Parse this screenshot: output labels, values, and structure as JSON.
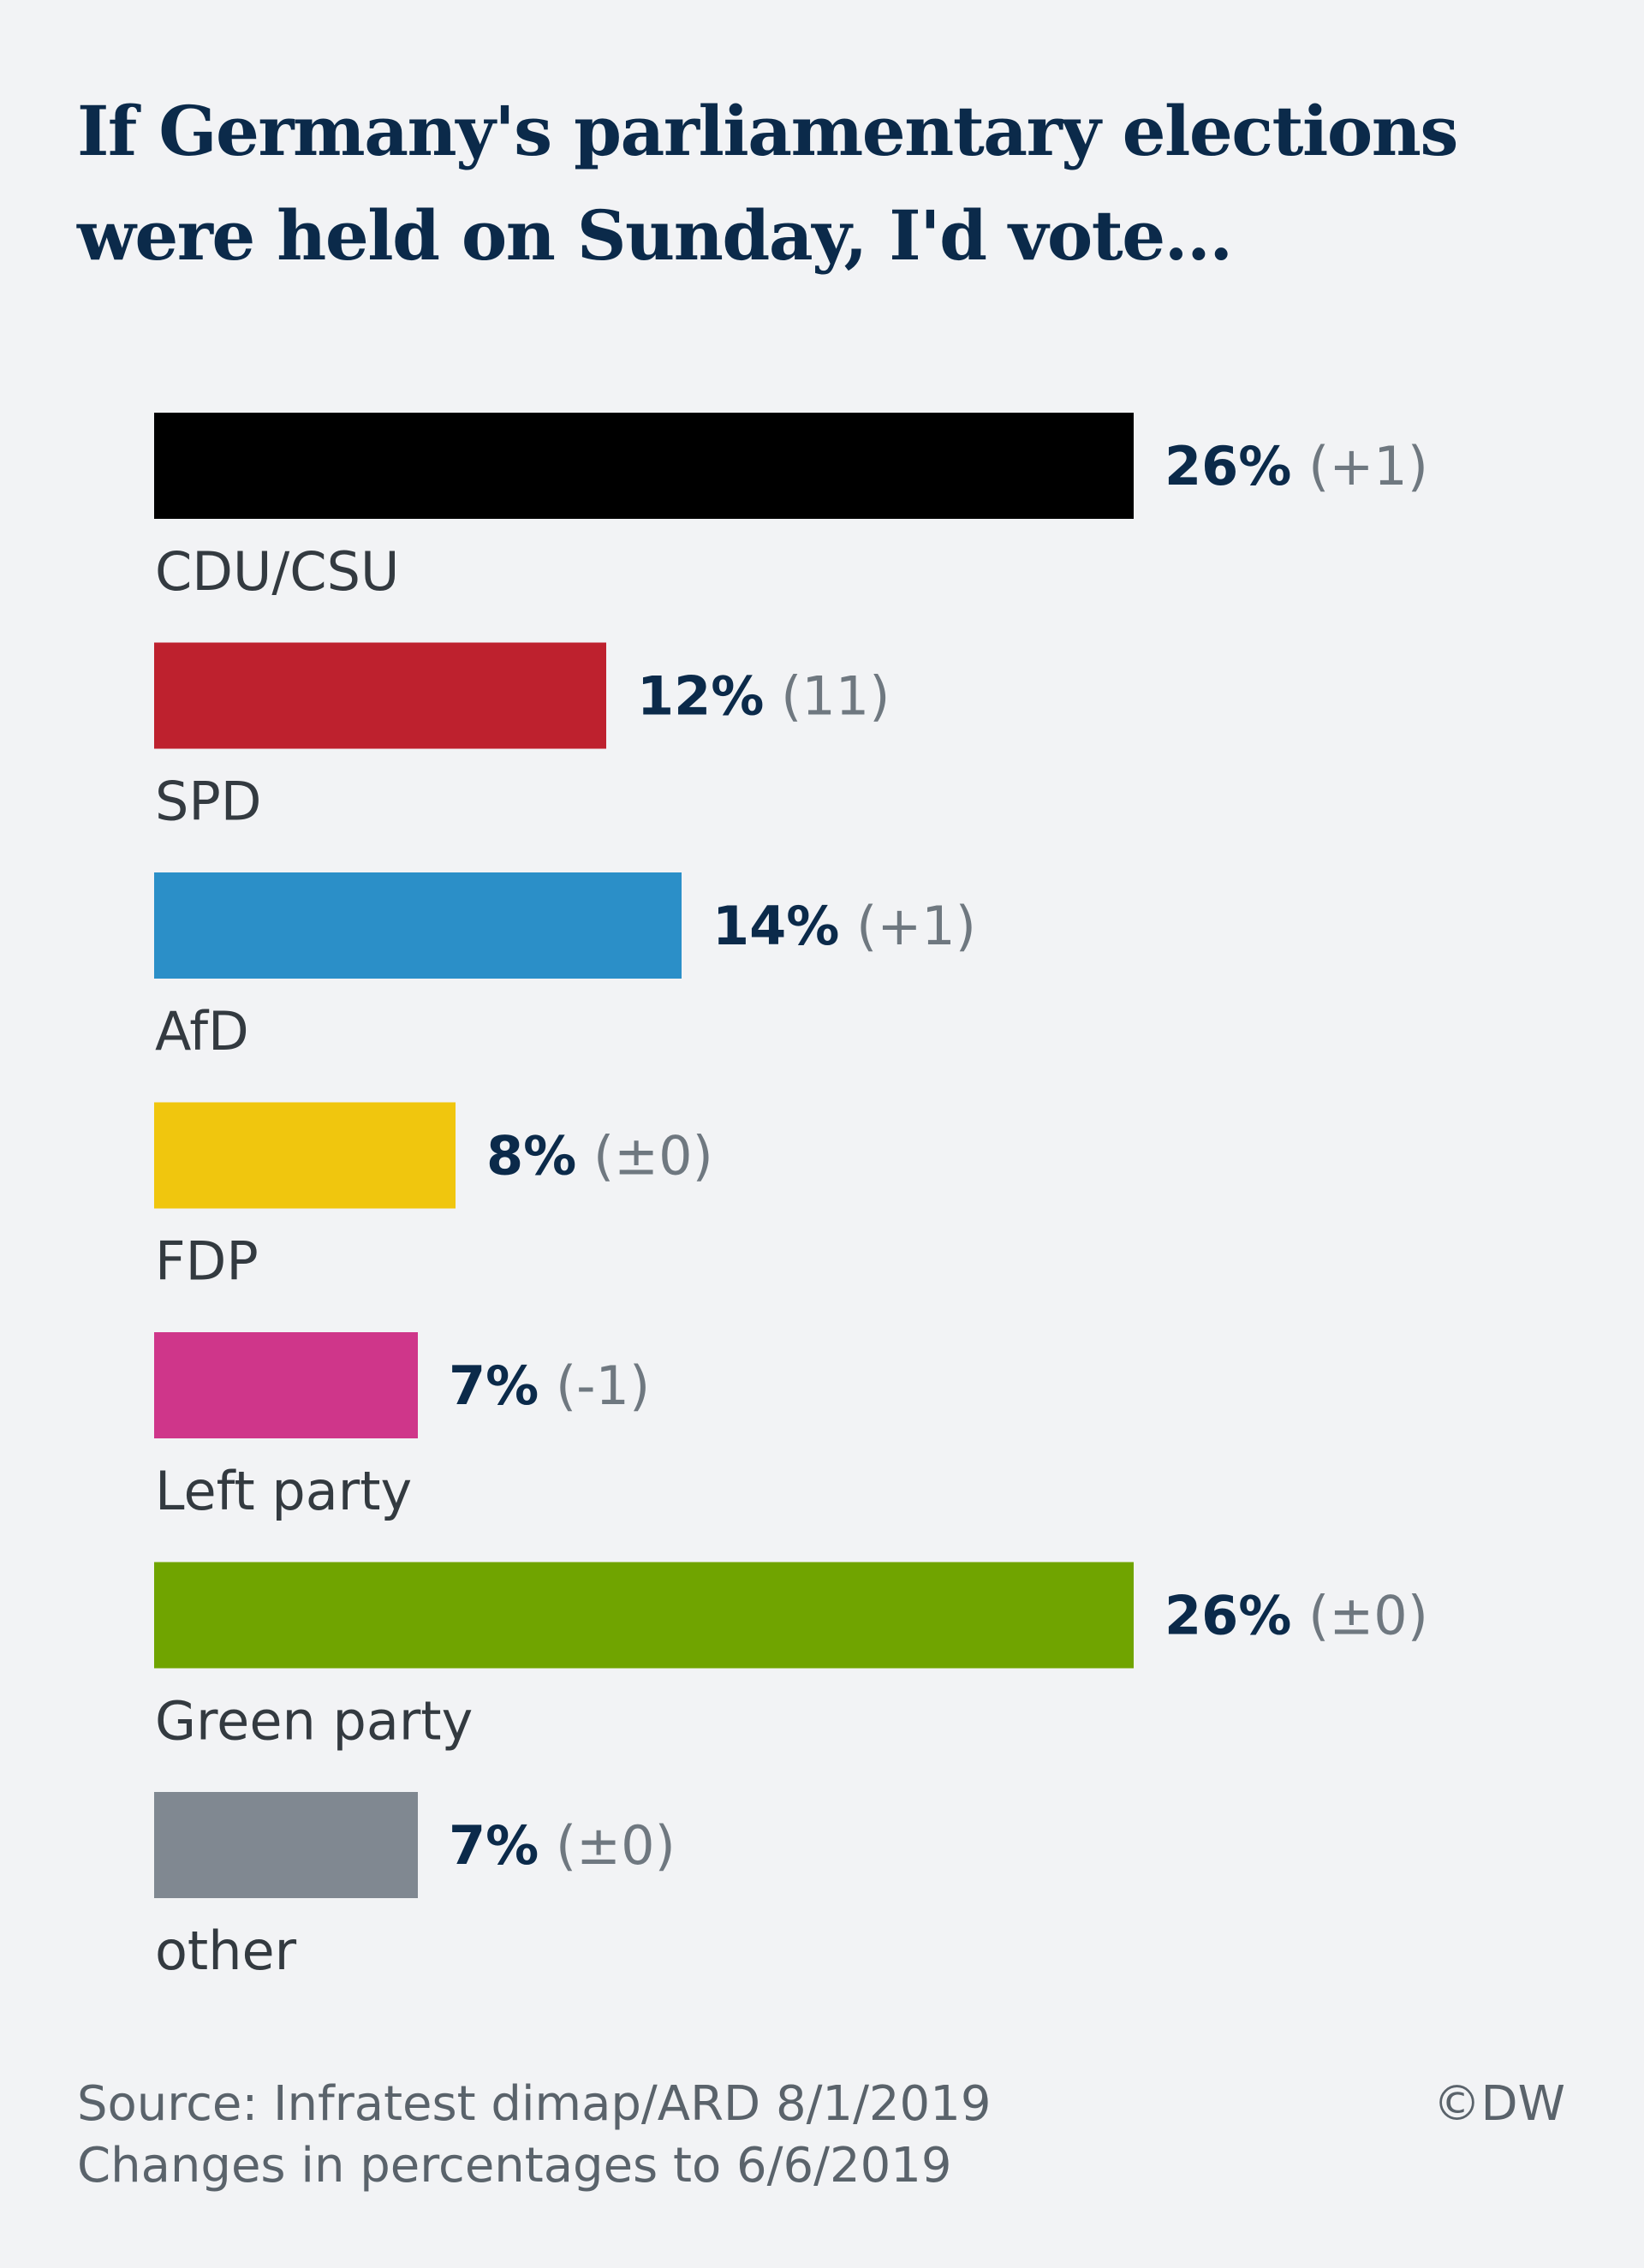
{
  "chart_data": {
    "type": "bar",
    "orientation": "horizontal",
    "title": "If Germany's parliamentary elections were held on Sunday, I'd vote...",
    "categories": [
      "CDU/CSU",
      "SPD",
      "AfD",
      "FDP",
      "Left party",
      "Green party",
      "other"
    ],
    "values": [
      26,
      12,
      14,
      8,
      7,
      26,
      7
    ],
    "value_labels": [
      "26%",
      "12%",
      "14%",
      "8%",
      "7%",
      "26%",
      "7%"
    ],
    "change_labels": [
      "(+1)",
      "(11)",
      "(+1)",
      "(±0)",
      "(-1)",
      "(±0)",
      "(±0)"
    ],
    "colors": [
      "#000000",
      "#be212e",
      "#2b8fc8",
      "#f0c60e",
      "#cf368a",
      "#70a400",
      "#808891"
    ],
    "unit": "%",
    "xlim": [
      0,
      26
    ],
    "grid": false,
    "legend": "none"
  },
  "footer": {
    "source": "Source: Infratest dimap/ARD 8/1/2019",
    "note": "Changes in percentages to 6/6/2019",
    "credit": "©DW"
  }
}
